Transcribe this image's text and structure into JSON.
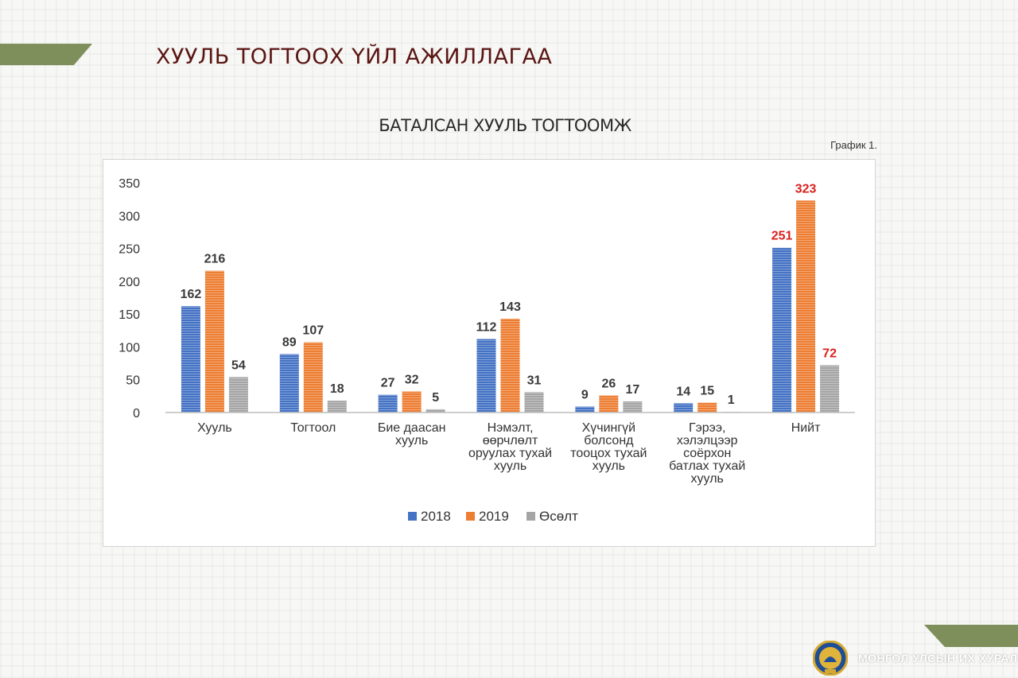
{
  "header": {
    "title": "ХУУЛЬ ТОГТООХ ҮЙЛ АЖИЛЛАГАА"
  },
  "chart_caption": "График 1.",
  "footer": {
    "org_name": "МОНГОЛ УЛСЫН ИХ ХУРАЛ"
  },
  "colors": {
    "series_2018": "#4472c4",
    "series_2019": "#ed7d31",
    "series_growth": "#a5a5a5",
    "highlight_label": "#d9201f",
    "ribbon": "#7f8f5c",
    "title": "#5a1512"
  },
  "chart_data": {
    "type": "bar",
    "title": "БАТАЛСАН ХУУЛЬ ТОГТООМЖ",
    "categories": [
      [
        "Хууль"
      ],
      [
        "Тогтоол"
      ],
      [
        "Бие даасан",
        "хууль"
      ],
      [
        "Нэмэлт,",
        "өөрчлөлт",
        "оруулах тухай",
        "хууль"
      ],
      [
        "Хүчингүй",
        "болсонд",
        "тооцох тухай",
        "хууль"
      ],
      [
        "Гэрээ,",
        "хэлэлцээр",
        "соёрхон",
        "батлах тухай",
        "хууль"
      ],
      [
        "Нийт"
      ]
    ],
    "series": [
      {
        "name": "2018",
        "values": [
          162,
          89,
          27,
          112,
          9,
          14,
          251
        ]
      },
      {
        "name": "2019",
        "values": [
          216,
          107,
          32,
          143,
          26,
          15,
          323
        ]
      },
      {
        "name": "Өсөлт",
        "values": [
          54,
          18,
          5,
          31,
          17,
          1,
          72
        ]
      }
    ],
    "yticks": [
      0,
      50,
      100,
      150,
      200,
      250,
      300,
      350
    ],
    "ylim": [
      0,
      350
    ],
    "grid": false,
    "legend": "bottom-center",
    "highlight_category_index": 6
  }
}
